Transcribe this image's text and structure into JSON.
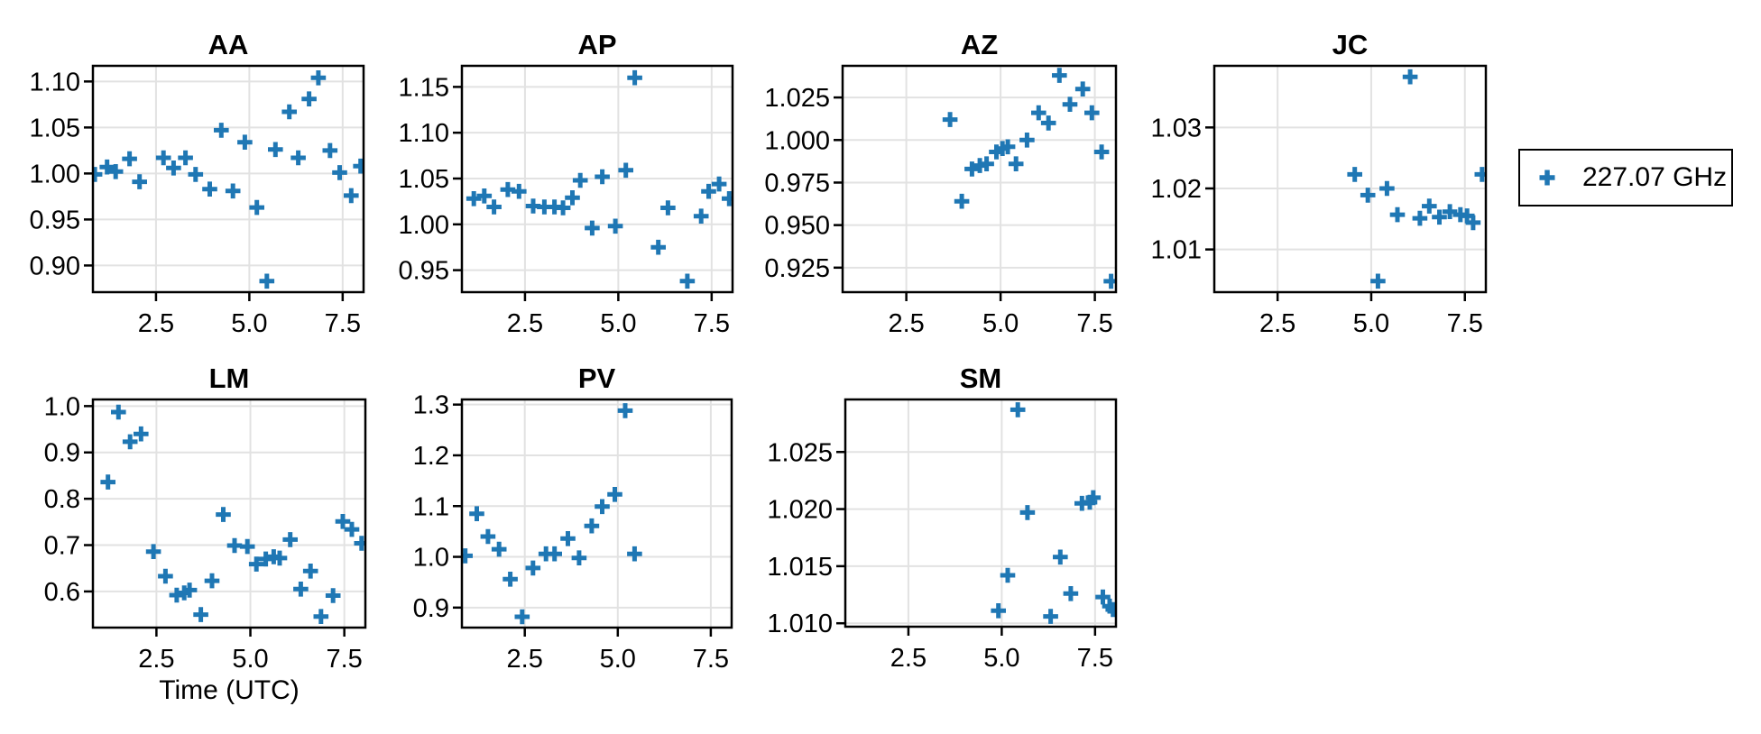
{
  "figure": {
    "xlabel": "Time (UTC)",
    "legend": {
      "label": "227.07 GHz",
      "marker": "plus"
    },
    "colors": {
      "marker": "#1f77b4",
      "grid": "#e2e2e2",
      "frame": "#000000",
      "text": "#000000",
      "background": "#ffffff"
    }
  },
  "chart_data": [
    {
      "type": "scatter",
      "title": "AA",
      "xlabel": "",
      "grid": true,
      "xlim": [
        0.81,
        8.06
      ],
      "ylim": [
        0.871,
        1.117
      ],
      "xtick_values": [
        2.5,
        5.0,
        7.5
      ],
      "xtick_labels": [
        "2.5",
        "5.0",
        "7.5"
      ],
      "ytick_values": [
        0.9,
        0.95,
        1.0,
        1.05,
        1.1
      ],
      "ytick_labels": [
        "0.90",
        "0.95",
        "1.00",
        "1.05",
        "1.10"
      ],
      "series": [
        {
          "name": "227.07 GHz",
          "marker": "plus",
          "points": [
            [
              0.86,
              0.999
            ],
            [
              1.19,
              1.007
            ],
            [
              1.42,
              1.002
            ],
            [
              1.79,
              1.016
            ],
            [
              2.06,
              0.991
            ],
            [
              2.7,
              1.017
            ],
            [
              2.97,
              1.006
            ],
            [
              3.29,
              1.017
            ],
            [
              3.56,
              0.999
            ],
            [
              3.94,
              0.983
            ],
            [
              4.25,
              1.047
            ],
            [
              4.56,
              0.981
            ],
            [
              4.88,
              1.034
            ],
            [
              5.2,
              0.963
            ],
            [
              5.47,
              0.883
            ],
            [
              5.7,
              1.026
            ],
            [
              6.07,
              1.067
            ],
            [
              6.31,
              1.017
            ],
            [
              6.6,
              1.081
            ],
            [
              6.85,
              1.104
            ],
            [
              7.16,
              1.025
            ],
            [
              7.42,
              1.001
            ],
            [
              7.73,
              0.976
            ],
            [
              7.98,
              1.008
            ]
          ]
        }
      ]
    },
    {
      "type": "scatter",
      "title": "AP",
      "xlabel": "",
      "grid": true,
      "xlim": [
        0.81,
        8.06
      ],
      "ylim": [
        0.926,
        1.173
      ],
      "xtick_values": [
        2.5,
        5.0,
        7.5
      ],
      "xtick_labels": [
        "2.5",
        "5.0",
        "7.5"
      ],
      "ytick_values": [
        0.95,
        1.0,
        1.05,
        1.1,
        1.15
      ],
      "ytick_labels": [
        "0.95",
        "1.00",
        "1.05",
        "1.10",
        "1.15"
      ],
      "series": [
        {
          "name": "227.07 GHz",
          "marker": "plus",
          "points": [
            [
              1.13,
              1.028
            ],
            [
              1.41,
              1.031
            ],
            [
              1.67,
              1.019
            ],
            [
              2.04,
              1.038
            ],
            [
              2.34,
              1.036
            ],
            [
              2.72,
              1.02
            ],
            [
              3.02,
              1.019
            ],
            [
              3.29,
              1.019
            ],
            [
              3.52,
              1.018
            ],
            [
              3.77,
              1.029
            ],
            [
              3.98,
              1.048
            ],
            [
              4.3,
              0.996
            ],
            [
              4.57,
              1.052
            ],
            [
              4.92,
              0.998
            ],
            [
              5.2,
              1.059
            ],
            [
              5.44,
              1.16
            ],
            [
              6.07,
              0.975
            ],
            [
              6.33,
              1.018
            ],
            [
              6.85,
              0.938
            ],
            [
              7.22,
              1.009
            ],
            [
              7.42,
              1.036
            ],
            [
              7.7,
              1.044
            ],
            [
              7.97,
              1.028
            ]
          ]
        }
      ]
    },
    {
      "type": "scatter",
      "title": "AZ",
      "xlabel": "",
      "grid": true,
      "xlim": [
        0.81,
        8.06
      ],
      "ylim": [
        0.9106,
        1.0436
      ],
      "xtick_values": [
        2.5,
        5.0,
        7.5
      ],
      "xtick_labels": [
        "2.5",
        "5.0",
        "7.5"
      ],
      "ytick_values": [
        0.925,
        0.95,
        0.975,
        1.0,
        1.025
      ],
      "ytick_labels": [
        "0.925",
        "0.950",
        "0.975",
        "1.000",
        "1.025"
      ],
      "series": [
        {
          "name": "227.07 GHz",
          "marker": "plus",
          "points": [
            [
              3.66,
              1.012
            ],
            [
              3.97,
              0.964
            ],
            [
              4.24,
              0.983
            ],
            [
              4.45,
              0.985
            ],
            [
              4.63,
              0.986
            ],
            [
              4.89,
              0.993
            ],
            [
              5.05,
              0.995
            ],
            [
              5.19,
              0.996
            ],
            [
              5.41,
              0.986
            ],
            [
              5.7,
              1.0
            ],
            [
              6.01,
              1.016
            ],
            [
              6.27,
              1.01
            ],
            [
              6.56,
              1.038
            ],
            [
              6.84,
              1.021
            ],
            [
              7.18,
              1.03
            ],
            [
              7.42,
              1.016
            ],
            [
              7.68,
              0.993
            ],
            [
              7.93,
              0.917
            ]
          ]
        }
      ]
    },
    {
      "type": "scatter",
      "title": "JC",
      "xlabel": "",
      "grid": true,
      "xlim": [
        0.81,
        8.06
      ],
      "ylim": [
        1.003,
        1.0401
      ],
      "xtick_values": [
        2.5,
        5.0,
        7.5
      ],
      "xtick_labels": [
        "2.5",
        "5.0",
        "7.5"
      ],
      "ytick_values": [
        1.01,
        1.02,
        1.03
      ],
      "ytick_labels": [
        "1.01",
        "1.02",
        "1.03"
      ],
      "series": [
        {
          "name": "227.07 GHz",
          "marker": "plus",
          "points": [
            [
              4.56,
              1.0223
            ],
            [
              4.91,
              1.0189
            ],
            [
              5.18,
              1.0048
            ],
            [
              5.42,
              1.02
            ],
            [
              5.7,
              1.0157
            ],
            [
              6.04,
              1.0383
            ],
            [
              6.3,
              1.0151
            ],
            [
              6.55,
              1.0171
            ],
            [
              6.82,
              1.0153
            ],
            [
              7.1,
              1.0162
            ],
            [
              7.38,
              1.0157
            ],
            [
              7.56,
              1.0155
            ],
            [
              7.72,
              1.0144
            ],
            [
              7.96,
              1.0223
            ]
          ]
        }
      ]
    },
    {
      "type": "scatter",
      "title": "LM",
      "xlabel": "Time (UTC)",
      "grid": true,
      "xlim": [
        0.81,
        8.06
      ],
      "ylim": [
        0.522,
        1.0143
      ],
      "xtick_values": [
        2.5,
        5.0,
        7.5
      ],
      "xtick_labels": [
        "2.5",
        "5.0",
        "7.5"
      ],
      "ytick_values": [
        0.6,
        0.7,
        0.8,
        0.9,
        1.0
      ],
      "ytick_labels": [
        "0.6",
        "0.7",
        "0.8",
        "0.9",
        "1.0"
      ],
      "series": [
        {
          "name": "227.07 GHz",
          "marker": "plus",
          "points": [
            [
              1.21,
              0.836
            ],
            [
              1.49,
              0.987
            ],
            [
              1.8,
              0.923
            ],
            [
              2.09,
              0.94
            ],
            [
              2.42,
              0.686
            ],
            [
              2.74,
              0.633
            ],
            [
              3.04,
              0.592
            ],
            [
              3.24,
              0.597
            ],
            [
              3.38,
              0.603
            ],
            [
              3.68,
              0.55
            ],
            [
              3.98,
              0.623
            ],
            [
              4.28,
              0.766
            ],
            [
              4.58,
              0.699
            ],
            [
              4.92,
              0.697
            ],
            [
              5.16,
              0.659
            ],
            [
              5.41,
              0.67
            ],
            [
              5.62,
              0.675
            ],
            [
              5.78,
              0.672
            ],
            [
              6.06,
              0.712
            ],
            [
              6.34,
              0.605
            ],
            [
              6.6,
              0.644
            ],
            [
              6.88,
              0.546
            ],
            [
              7.2,
              0.591
            ],
            [
              7.46,
              0.751
            ],
            [
              7.7,
              0.734
            ],
            [
              7.96,
              0.704
            ]
          ]
        }
      ]
    },
    {
      "type": "scatter",
      "title": "PV",
      "xlabel": "",
      "grid": true,
      "xlim": [
        0.81,
        8.06
      ],
      "ylim": [
        0.8606,
        1.3101
      ],
      "xtick_values": [
        2.5,
        5.0,
        7.5
      ],
      "xtick_labels": [
        "2.5",
        "5.0",
        "7.5"
      ],
      "ytick_values": [
        0.9,
        1.0,
        1.1,
        1.2,
        1.3
      ],
      "ytick_labels": [
        "0.9",
        "1.0",
        "1.1",
        "1.2",
        "1.3"
      ],
      "series": [
        {
          "name": "227.07 GHz",
          "marker": "plus",
          "points": [
            [
              0.9,
              1.002
            ],
            [
              1.21,
              1.085
            ],
            [
              1.51,
              1.04
            ],
            [
              1.81,
              1.015
            ],
            [
              2.11,
              0.956
            ],
            [
              2.43,
              0.882
            ],
            [
              2.72,
              0.978
            ],
            [
              3.07,
              1.006
            ],
            [
              3.3,
              1.006
            ],
            [
              3.66,
              1.036
            ],
            [
              3.96,
              0.998
            ],
            [
              4.3,
              1.061
            ],
            [
              4.58,
              1.099
            ],
            [
              4.92,
              1.123
            ],
            [
              5.2,
              1.288
            ],
            [
              5.45,
              1.006
            ]
          ]
        }
      ]
    },
    {
      "type": "scatter",
      "title": "SM",
      "xlabel": "",
      "grid": true,
      "xlim": [
        0.81,
        8.06
      ],
      "ylim": [
        1.0097,
        1.0296
      ],
      "xtick_values": [
        2.5,
        5.0,
        7.5
      ],
      "xtick_labels": [
        "2.5",
        "5.0",
        "7.5"
      ],
      "ytick_values": [
        1.01,
        1.015,
        1.02,
        1.025
      ],
      "ytick_labels": [
        "1.010",
        "1.015",
        "1.020",
        "1.025"
      ],
      "series": [
        {
          "name": "227.07 GHz",
          "marker": "plus",
          "points": [
            [
              4.91,
              1.0111
            ],
            [
              5.16,
              1.0142
            ],
            [
              5.43,
              1.0287
            ],
            [
              5.69,
              1.0197
            ],
            [
              6.31,
              1.0106
            ],
            [
              6.57,
              1.0158
            ],
            [
              6.85,
              1.0126
            ],
            [
              7.15,
              1.0205
            ],
            [
              7.36,
              1.0206
            ],
            [
              7.45,
              1.021
            ],
            [
              7.71,
              1.0123
            ],
            [
              7.89,
              1.0115
            ],
            [
              7.98,
              1.0112
            ]
          ]
        }
      ]
    }
  ]
}
